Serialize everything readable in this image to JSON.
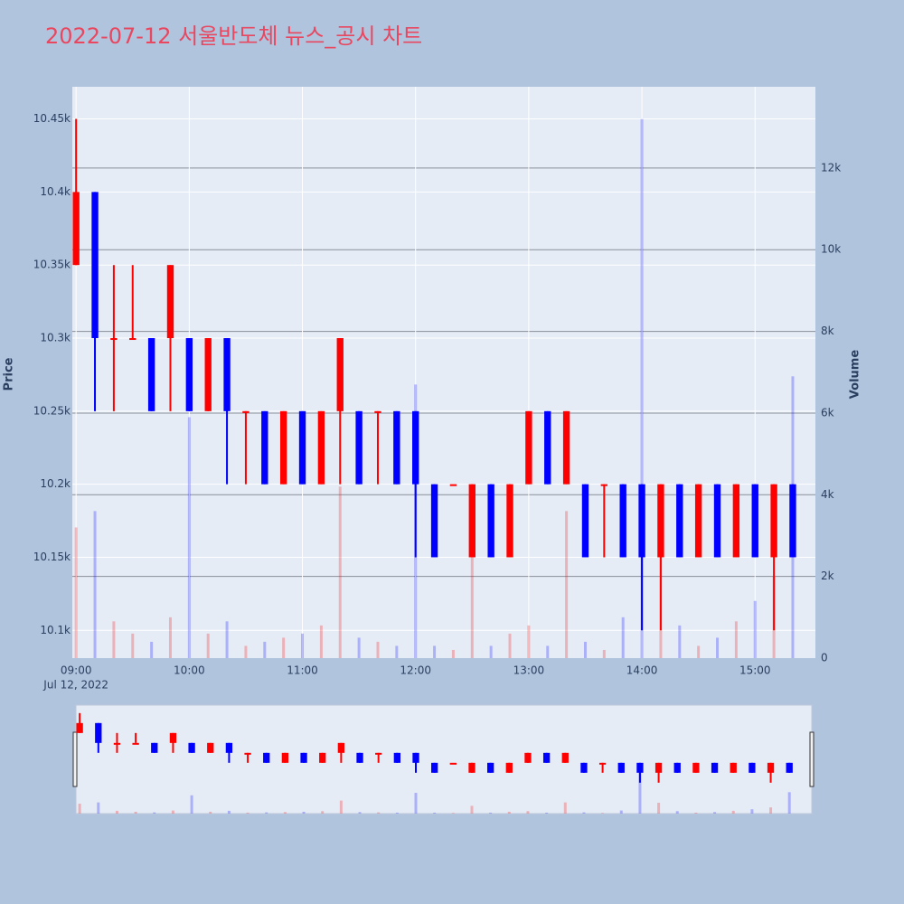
{
  "chart_data": {
    "type": "candlestick",
    "title": "2022-07-12 서울반도체 뉴스_공시 차트",
    "y_title": "Price",
    "y2_title": "Volume",
    "x": [
      "09:00",
      "09:10",
      "09:20",
      "09:30",
      "09:40",
      "09:50",
      "10:00",
      "10:10",
      "10:20",
      "10:30",
      "10:40",
      "10:50",
      "11:00",
      "11:10",
      "11:20",
      "11:30",
      "11:40",
      "11:50",
      "12:00",
      "12:10",
      "12:20",
      "12:30",
      "12:40",
      "12:50",
      "13:00",
      "13:10",
      "13:20",
      "13:30",
      "13:40",
      "13:50",
      "14:00",
      "14:10",
      "14:20",
      "14:30",
      "14:40",
      "14:50",
      "15:00",
      "15:10",
      "15:20"
    ],
    "x_date_label": "Jul 12, 2022",
    "open": [
      10350,
      10400,
      10300,
      10300,
      10300,
      10300,
      10300,
      10250,
      10300,
      10250,
      10250,
      10200,
      10250,
      10200,
      10250,
      10250,
      10250,
      10250,
      10250,
      10200,
      10200,
      10150,
      10200,
      10150,
      10200,
      10250,
      10200,
      10200,
      10200,
      10200,
      10200,
      10150,
      10200,
      10150,
      10200,
      10150,
      10200,
      10150,
      10200
    ],
    "high": [
      10450,
      10400,
      10350,
      10350,
      10300,
      10350,
      10300,
      10300,
      10300,
      10250,
      10250,
      10250,
      10250,
      10250,
      10300,
      10250,
      10250,
      10250,
      10250,
      10200,
      10200,
      10200,
      10200,
      10200,
      10250,
      10250,
      10250,
      10200,
      10200,
      10200,
      10200,
      10200,
      10200,
      10200,
      10200,
      10200,
      10200,
      10200,
      10200
    ],
    "low": [
      10350,
      10250,
      10250,
      10300,
      10250,
      10250,
      10250,
      10250,
      10200,
      10200,
      10200,
      10200,
      10200,
      10200,
      10200,
      10200,
      10200,
      10200,
      10150,
      10150,
      10200,
      10150,
      10150,
      10150,
      10200,
      10200,
      10200,
      10150,
      10150,
      10150,
      10100,
      10100,
      10150,
      10150,
      10150,
      10150,
      10150,
      10100,
      10150
    ],
    "close": [
      10400,
      10300,
      10300,
      10300,
      10250,
      10350,
      10250,
      10300,
      10250,
      10250,
      10200,
      10250,
      10200,
      10250,
      10300,
      10200,
      10250,
      10200,
      10200,
      10150,
      10200,
      10200,
      10150,
      10200,
      10250,
      10200,
      10250,
      10150,
      10200,
      10150,
      10150,
      10200,
      10150,
      10200,
      10150,
      10200,
      10150,
      10200,
      10150
    ],
    "volume": [
      3200,
      3600,
      900,
      600,
      400,
      1000,
      5900,
      600,
      900,
      300,
      400,
      500,
      600,
      800,
      4200,
      500,
      400,
      300,
      6700,
      300,
      200,
      2500,
      300,
      600,
      800,
      300,
      3600,
      400,
      200,
      1000,
      13200,
      3500,
      800,
      300,
      500,
      900,
      1400,
      2000,
      6900
    ],
    "increasing_color": "#ff0000",
    "decreasing_color": "#0000ff",
    "xlim": [
      "08:58",
      "15:32"
    ],
    "xticks": [
      "09:00",
      "10:00",
      "11:00",
      "12:00",
      "13:00",
      "14:00",
      "15:00"
    ],
    "ylim": [
      10081,
      10472
    ],
    "yticks": [
      {
        "value": 10100,
        "label": "10.1k"
      },
      {
        "value": 10150,
        "label": "10.15k"
      },
      {
        "value": 10200,
        "label": "10.2k"
      },
      {
        "value": 10250,
        "label": "10.25k"
      },
      {
        "value": 10300,
        "label": "10.3k"
      },
      {
        "value": 10350,
        "label": "10.35k"
      },
      {
        "value": 10400,
        "label": "10.4k"
      },
      {
        "value": 10450,
        "label": "10.45k"
      }
    ],
    "y2lim": [
      0,
      13990
    ],
    "y2ticks": [
      0,
      {
        "value": 2000,
        "label": "2k"
      },
      {
        "value": 4000,
        "label": "4k"
      },
      {
        "value": 6000,
        "label": "6k"
      },
      {
        "value": 8000,
        "label": "8k"
      },
      {
        "value": 10000,
        "label": "10k"
      },
      {
        "value": 12000,
        "label": "12k"
      }
    ],
    "grid": true,
    "rangeslider": true
  }
}
